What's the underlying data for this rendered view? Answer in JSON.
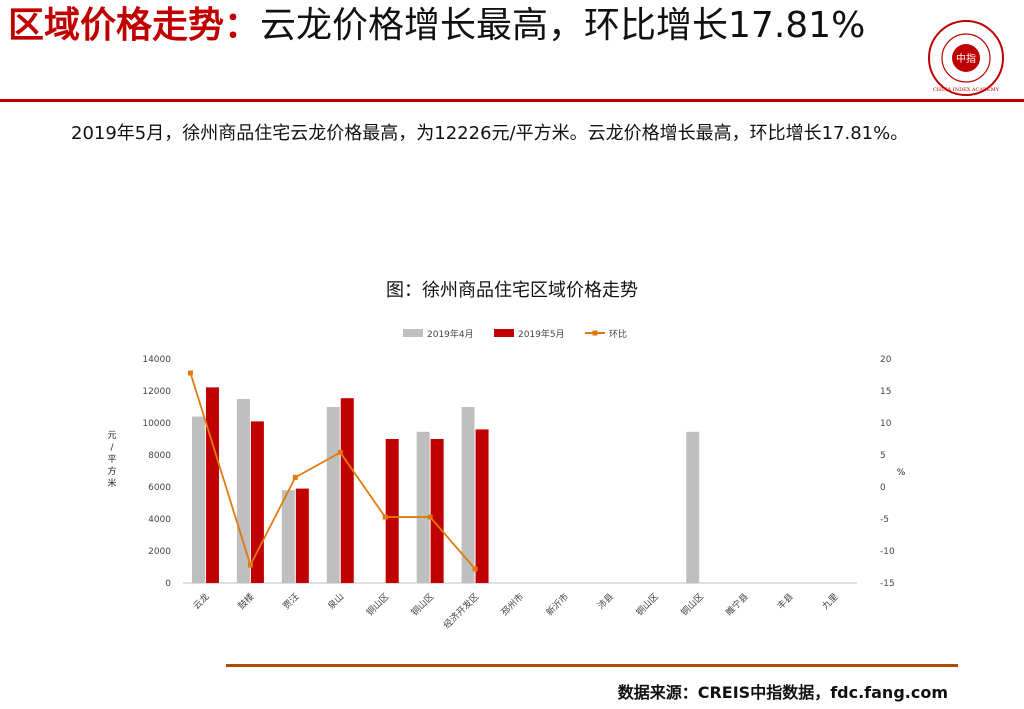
{
  "header": {
    "title_highlight": "区域价格走势：",
    "title_rest": "云龙价格增长最高，环比增长17.81%"
  },
  "logo": {
    "text": "CHINA INDEX ACADEMY",
    "center_text": "中指"
  },
  "body": {
    "paragraph": "2019年5月，徐州商品住宅云龙价格最高，为12226元/平方米。云龙价格增长最高，环比增长17.81%。"
  },
  "chart_title": "图：徐州商品住宅区域价格走势",
  "chart_data": {
    "type": "bar",
    "categories": [
      "云龙",
      "鼓楼",
      "贾汪",
      "泉山",
      "铜山区",
      "铜山区",
      "经济开发区",
      "邳州市",
      "新沂市",
      "沛县",
      "铜山区",
      "铜山区",
      "睢宁县",
      "丰县",
      "九里"
    ],
    "series": [
      {
        "name": "2019年4月",
        "type": "bar",
        "axis": "left",
        "color": "#bfbfbf",
        "values": [
          10400,
          11500,
          5800,
          11000,
          null,
          9450,
          11000,
          null,
          null,
          null,
          null,
          9450,
          null,
          null,
          null
        ]
      },
      {
        "name": "2019年5月",
        "type": "bar",
        "axis": "left",
        "color": "#c00000",
        "values": [
          12226,
          10100,
          5900,
          11550,
          9000,
          9000,
          9600,
          null,
          null,
          null,
          null,
          null,
          null,
          null,
          null
        ]
      },
      {
        "name": "环比",
        "type": "line",
        "axis": "right",
        "color": "#e07b10",
        "values": [
          17.81,
          -12.2,
          1.5,
          5.4,
          -4.7,
          -4.7,
          -12.8,
          null,
          null,
          null,
          null,
          null,
          null,
          null,
          null
        ]
      }
    ],
    "yleft": {
      "label": "元/平方米",
      "min": 0,
      "max": 14000,
      "ticks": [
        "0",
        "2000",
        "4000",
        "6000",
        "8000",
        "10000",
        "12000",
        "14000"
      ]
    },
    "yright": {
      "label": "%",
      "min": -15,
      "max": 20,
      "ticks": [
        "-15",
        "-10",
        "-5",
        "0",
        "5",
        "10",
        "15",
        "20"
      ]
    },
    "legend_position": "top",
    "grid": false
  },
  "source": {
    "text": "数据来源：CREIS中指数据，fdc.fang.com"
  },
  "colors": {
    "accent": "#c00000",
    "rule_bottom": "#b04a00",
    "bar_prev": "#bfbfbf",
    "bar_curr": "#c00000",
    "line": "#e07b10"
  }
}
